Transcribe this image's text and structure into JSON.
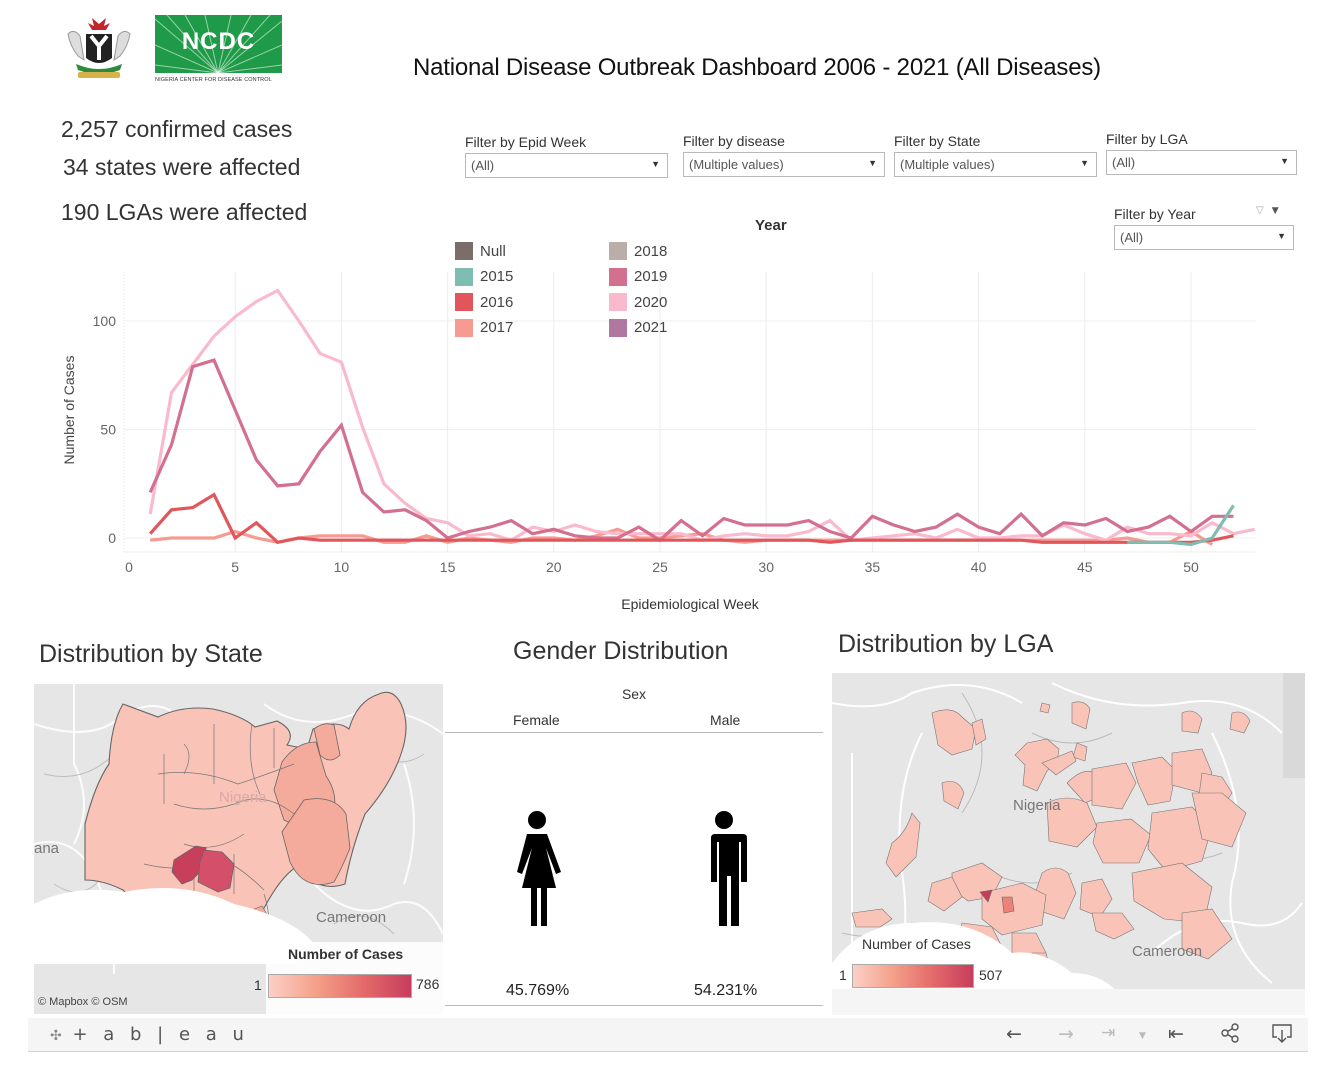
{
  "header": {
    "title": "National Disease Outbreak Dashboard 2006 - 2021 (All Diseases)",
    "logo_ncdc": "NCDC",
    "logo_ncdc_sub": "NIGERIA CENTER FOR DISEASE CONTROL",
    "logo_coat": "Nigeria coat of arms"
  },
  "kpis": {
    "confirmed": "2,257 confirmed cases",
    "states": "34 states were affected",
    "lgas": "190 LGAs  were affected"
  },
  "filters": {
    "epid_week": {
      "label": "Filter by Epid Week",
      "value": "(All)"
    },
    "disease": {
      "label": "Filter by disease",
      "value": "(Multiple values)"
    },
    "state": {
      "label": "Filter by State",
      "value": "(Multiple values)"
    },
    "lga": {
      "label": "Filter by LGA",
      "value": "(All)"
    },
    "year": {
      "label": "Filter by Year",
      "value": "(All)"
    }
  },
  "chart_data": {
    "type": "line",
    "title": "",
    "xlabel": "Epidemiological Week",
    "ylabel": "Number of Cases",
    "xlim": [
      0,
      53
    ],
    "ylim": [
      -5,
      120
    ],
    "xticks": [
      0,
      5,
      10,
      15,
      20,
      25,
      30,
      35,
      40,
      45,
      50
    ],
    "yticks": [
      0,
      50,
      100
    ],
    "grid": true,
    "legend_title": "Year",
    "legend_position": "top-center",
    "series": [
      {
        "name": "Null",
        "color": "#7b6d6a",
        "points": []
      },
      {
        "name": "2015",
        "color": "#7fbcb2",
        "points": [
          [
            47,
            -2
          ],
          [
            48,
            -2
          ],
          [
            49,
            -2
          ],
          [
            50,
            -3
          ],
          [
            51,
            0
          ],
          [
            52,
            15
          ]
        ]
      },
      {
        "name": "2016",
        "color": "#e1565b",
        "points": [
          [
            1,
            2
          ],
          [
            2,
            13
          ],
          [
            3,
            14
          ],
          [
            4,
            20
          ],
          [
            5,
            0
          ],
          [
            6,
            7
          ],
          [
            7,
            -2
          ],
          [
            8,
            0
          ],
          [
            9,
            -1
          ],
          [
            10,
            -1
          ],
          [
            11,
            -1
          ],
          [
            12,
            -1
          ],
          [
            13,
            -1
          ],
          [
            14,
            -1
          ],
          [
            15,
            -1
          ],
          [
            16,
            -1
          ],
          [
            17,
            -1
          ],
          [
            18,
            -1
          ],
          [
            19,
            -1
          ],
          [
            20,
            -1
          ],
          [
            21,
            -1
          ],
          [
            22,
            -1
          ],
          [
            23,
            -1
          ],
          [
            24,
            -1
          ],
          [
            25,
            -1
          ],
          [
            26,
            -1
          ],
          [
            27,
            -1
          ],
          [
            28,
            -1
          ],
          [
            29,
            -1
          ],
          [
            30,
            -1
          ],
          [
            31,
            -1
          ],
          [
            32,
            -1
          ],
          [
            33,
            -2
          ],
          [
            34,
            -1
          ],
          [
            35,
            -1
          ],
          [
            36,
            -1
          ],
          [
            37,
            -1
          ],
          [
            38,
            -1
          ],
          [
            39,
            -1
          ],
          [
            40,
            -1
          ],
          [
            41,
            -1
          ],
          [
            42,
            -1
          ],
          [
            43,
            -2
          ],
          [
            44,
            -2
          ],
          [
            45,
            -2
          ],
          [
            46,
            -2
          ],
          [
            47,
            -2
          ],
          [
            48,
            -2
          ],
          [
            49,
            -2
          ],
          [
            50,
            -2
          ],
          [
            51,
            -1
          ],
          [
            52,
            1
          ]
        ]
      },
      {
        "name": "2017",
        "color": "#f79a91",
        "points": [
          [
            1,
            -1
          ],
          [
            2,
            0
          ],
          [
            3,
            0
          ],
          [
            4,
            0
          ],
          [
            5,
            3
          ],
          [
            6,
            0
          ],
          [
            7,
            -2
          ],
          [
            8,
            0
          ],
          [
            9,
            1
          ],
          [
            10,
            1
          ],
          [
            11,
            1
          ],
          [
            12,
            -2
          ],
          [
            13,
            -2
          ],
          [
            14,
            1
          ],
          [
            15,
            -2
          ],
          [
            16,
            0
          ],
          [
            17,
            -1
          ],
          [
            18,
            -2
          ],
          [
            19,
            0
          ],
          [
            20,
            0
          ],
          [
            21,
            -1
          ],
          [
            22,
            1
          ],
          [
            23,
            4
          ],
          [
            24,
            0
          ],
          [
            25,
            0
          ],
          [
            26,
            1
          ],
          [
            27,
            2
          ],
          [
            28,
            -1
          ],
          [
            29,
            -2
          ],
          [
            30,
            -1
          ],
          [
            31,
            -1
          ],
          [
            32,
            -1
          ],
          [
            33,
            -1
          ],
          [
            34,
            -1
          ],
          [
            35,
            -1
          ],
          [
            36,
            -1
          ],
          [
            37,
            -1
          ],
          [
            38,
            -1
          ],
          [
            39,
            -1
          ],
          [
            40,
            -1
          ],
          [
            41,
            -1
          ],
          [
            42,
            -1
          ],
          [
            43,
            -1
          ],
          [
            44,
            -1
          ],
          [
            45,
            -1
          ],
          [
            46,
            -1
          ],
          [
            47,
            0
          ],
          [
            48,
            -2
          ],
          [
            49,
            -2
          ],
          [
            50,
            3
          ],
          [
            51,
            -3
          ]
        ]
      },
      {
        "name": "2018",
        "color": "#bbaea9",
        "points": []
      },
      {
        "name": "2019",
        "color": "#d3708f",
        "points": [
          [
            1,
            21
          ],
          [
            2,
            43
          ],
          [
            3,
            79
          ],
          [
            4,
            82
          ],
          [
            5,
            59
          ],
          [
            6,
            36
          ],
          [
            7,
            24
          ],
          [
            8,
            25
          ],
          [
            9,
            40
          ],
          [
            10,
            52
          ],
          [
            11,
            21
          ],
          [
            12,
            12
          ],
          [
            13,
            13
          ],
          [
            14,
            8
          ],
          [
            15,
            0
          ],
          [
            16,
            3
          ],
          [
            17,
            5
          ],
          [
            18,
            8
          ],
          [
            19,
            2
          ],
          [
            20,
            4
          ],
          [
            21,
            1
          ],
          [
            22,
            0
          ],
          [
            23,
            0
          ],
          [
            24,
            5
          ],
          [
            25,
            -1
          ],
          [
            26,
            8
          ],
          [
            27,
            1
          ],
          [
            28,
            9
          ],
          [
            29,
            6
          ],
          [
            30,
            6
          ],
          [
            31,
            6
          ],
          [
            32,
            8
          ],
          [
            33,
            3
          ],
          [
            34,
            0
          ],
          [
            35,
            10
          ],
          [
            36,
            6
          ],
          [
            37,
            3
          ],
          [
            38,
            5
          ],
          [
            39,
            11
          ],
          [
            40,
            5
          ],
          [
            41,
            2
          ],
          [
            42,
            11
          ],
          [
            43,
            1
          ],
          [
            44,
            7
          ],
          [
            45,
            6
          ],
          [
            46,
            9
          ],
          [
            47,
            3
          ],
          [
            48,
            5
          ],
          [
            49,
            10
          ],
          [
            50,
            3
          ],
          [
            51,
            10
          ],
          [
            52,
            10
          ]
        ]
      },
      {
        "name": "2020",
        "color": "#f9bacd",
        "points": [
          [
            1,
            11
          ],
          [
            2,
            67
          ],
          [
            3,
            80
          ],
          [
            4,
            93
          ],
          [
            5,
            102
          ],
          [
            6,
            109
          ],
          [
            7,
            114
          ],
          [
            8,
            100
          ],
          [
            9,
            85
          ],
          [
            10,
            81
          ],
          [
            11,
            51
          ],
          [
            12,
            25
          ],
          [
            13,
            16
          ],
          [
            14,
            9
          ],
          [
            15,
            7
          ],
          [
            16,
            1
          ],
          [
            17,
            2
          ],
          [
            18,
            -1
          ],
          [
            19,
            5
          ],
          [
            20,
            3
          ],
          [
            21,
            6
          ],
          [
            22,
            3
          ],
          [
            23,
            2
          ],
          [
            24,
            2
          ],
          [
            25,
            2
          ],
          [
            26,
            2
          ],
          [
            27,
            -1
          ],
          [
            28,
            1
          ],
          [
            29,
            2
          ],
          [
            30,
            1
          ],
          [
            31,
            1
          ],
          [
            32,
            3
          ],
          [
            33,
            8
          ],
          [
            34,
            -1
          ],
          [
            35,
            0
          ],
          [
            36,
            1
          ],
          [
            37,
            2
          ],
          [
            38,
            0
          ],
          [
            39,
            4
          ],
          [
            40,
            0
          ],
          [
            41,
            0
          ],
          [
            42,
            1
          ],
          [
            43,
            1
          ],
          [
            44,
            6
          ],
          [
            45,
            2
          ],
          [
            46,
            -1
          ],
          [
            47,
            5
          ],
          [
            48,
            2
          ],
          [
            49,
            2
          ],
          [
            50,
            1
          ],
          [
            51,
            7
          ],
          [
            52,
            2
          ],
          [
            53,
            4
          ]
        ]
      },
      {
        "name": "2021",
        "color": "#b0779f",
        "points": []
      }
    ]
  },
  "state_map": {
    "title": "Distribution by State",
    "labels": [
      "Nigeria",
      "Cameroon",
      "ana"
    ],
    "legend_title": "Number of Cases",
    "legend_min": "1",
    "legend_max": "786",
    "attribution": "© Mapbox  © OSM"
  },
  "gender": {
    "title": "Gender Distribution",
    "header": "Sex",
    "female_label": "Female",
    "male_label": "Male",
    "female_pct": "45.769%",
    "male_pct": "54.231%"
  },
  "lga_map": {
    "title": "Distribution by LGA",
    "labels": [
      "Nigeria",
      "Cameroon"
    ],
    "legend_title": "Number of Cases",
    "legend_min": "1",
    "legend_max": "507"
  },
  "footer": {
    "brand": "+ a b | e a u",
    "buttons": [
      "undo",
      "redo",
      "revert",
      "revert-menu",
      "reset",
      "share",
      "download"
    ]
  }
}
